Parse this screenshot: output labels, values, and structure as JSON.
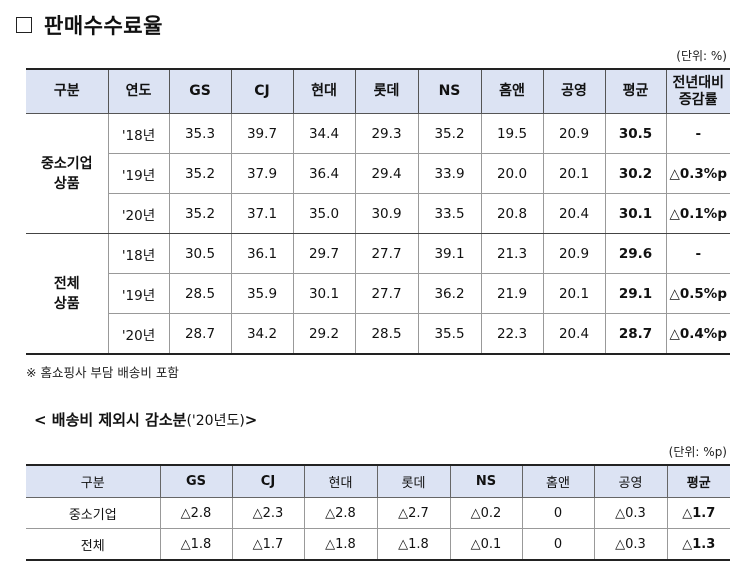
{
  "title": "판매수수료율",
  "unit1": "(단위: %)",
  "table1": {
    "headers": [
      "구분",
      "연도",
      "GS",
      "CJ",
      "현대",
      "롯데",
      "NS",
      "홈앤",
      "공영",
      "평균",
      "전년대비\n증감률"
    ],
    "groups": [
      {
        "category": "중소기업\n상품",
        "rows": [
          {
            "year": "'18년",
            "values": [
              "35.3",
              "39.7",
              "34.4",
              "29.3",
              "35.2",
              "19.5",
              "20.9"
            ],
            "avg": "30.5",
            "change": "-"
          },
          {
            "year": "'19년",
            "values": [
              "35.2",
              "37.9",
              "36.4",
              "29.4",
              "33.9",
              "20.0",
              "20.1"
            ],
            "avg": "30.2",
            "change": "△0.3%p"
          },
          {
            "year": "'20년",
            "values": [
              "35.2",
              "37.1",
              "35.0",
              "30.9",
              "33.5",
              "20.8",
              "20.4"
            ],
            "avg": "30.1",
            "change": "△0.1%p"
          }
        ]
      },
      {
        "category": "전체\n상품",
        "rows": [
          {
            "year": "'18년",
            "values": [
              "30.5",
              "36.1",
              "29.7",
              "27.7",
              "39.1",
              "21.3",
              "20.9"
            ],
            "avg": "29.6",
            "change": "-"
          },
          {
            "year": "'19년",
            "values": [
              "28.5",
              "35.9",
              "30.1",
              "27.7",
              "36.2",
              "21.9",
              "20.1"
            ],
            "avg": "29.1",
            "change": "△0.5%p"
          },
          {
            "year": "'20년",
            "values": [
              "28.7",
              "34.2",
              "29.2",
              "28.5",
              "35.5",
              "22.3",
              "20.4"
            ],
            "avg": "28.7",
            "change": "△0.4%p"
          }
        ]
      }
    ]
  },
  "note": "※ 홈쇼핑사 부담 배송비 포함",
  "subtitle": {
    "main": "< 배송비 제외시 감소분",
    "year": "('20년도)",
    "close": " >"
  },
  "unit2": "(단위: %p)",
  "table2": {
    "headers": [
      "구분",
      "GS",
      "CJ",
      "현대",
      "롯데",
      "NS",
      "홈앤",
      "공영",
      "평균"
    ],
    "rows": [
      {
        "label": "중소기업",
        "values": [
          "△2.8",
          "△2.3",
          "△2.8",
          "△2.7",
          "△0.2",
          "0",
          "△0.3"
        ],
        "avg": "△1.7"
      },
      {
        "label": "전체",
        "values": [
          "△1.8",
          "△1.7",
          "△1.8",
          "△1.8",
          "△0.1",
          "0",
          "△0.3"
        ],
        "avg": "△1.3"
      }
    ]
  }
}
